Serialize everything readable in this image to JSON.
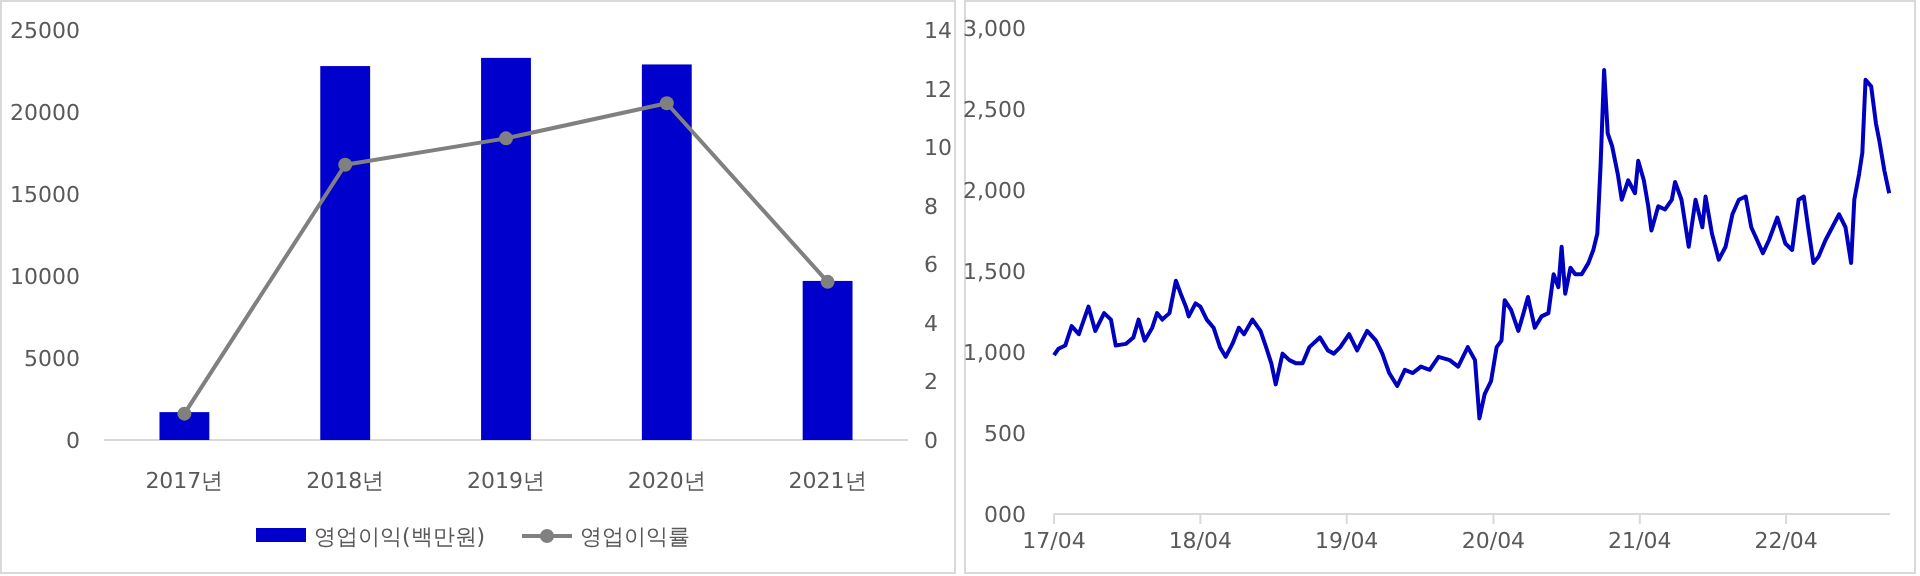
{
  "chart_data": [
    {
      "type": "bar",
      "categories": [
        "2017년",
        "2018년",
        "2019년",
        "2020년",
        "2021년"
      ],
      "series": [
        {
          "name": "영업이익(백만원)",
          "type": "bar",
          "color": "#0000cc",
          "values": [
            1700,
            22800,
            23300,
            22900,
            9700
          ]
        },
        {
          "name": "영업이익률",
          "type": "line",
          "axis": "y2",
          "color": "#808080",
          "values": [
            0.9,
            9.4,
            10.3,
            11.5,
            5.4
          ]
        }
      ],
      "ylim": [
        0,
        25000
      ],
      "yticks": [
        0,
        5000,
        10000,
        15000,
        20000,
        25000
      ],
      "y2lim": [
        0,
        14
      ],
      "y2ticks": [
        0,
        2,
        4,
        6,
        8,
        10,
        12,
        14
      ],
      "marker": "circle",
      "legend": "bottom"
    },
    {
      "type": "line",
      "series": [
        {
          "color": "#0000c0",
          "x": [
            "2017-04-01",
            "2017-04-12",
            "2017-04-29",
            "2017-05-15",
            "2017-06-02",
            "2017-06-26",
            "2017-07-13",
            "2017-08-04",
            "2017-08-21",
            "2017-09-02",
            "2017-09-27",
            "2017-10-16",
            "2017-10-29",
            "2017-11-13",
            "2017-12-02",
            "2017-12-14",
            "2017-12-27",
            "2018-01-14",
            "2018-01-30",
            "2018-02-11",
            "2018-02-24",
            "2018-03-03",
            "2018-03-20",
            "2018-04-01",
            "2018-04-17",
            "2018-05-04",
            "2018-05-20",
            "2018-06-03",
            "2018-06-20",
            "2018-07-06",
            "2018-07-19",
            "2018-08-09",
            "2018-08-29",
            "2018-09-12",
            "2018-09-25",
            "2018-10-06",
            "2018-10-23",
            "2018-11-09",
            "2018-11-26",
            "2018-12-12",
            "2018-12-29",
            "2019-01-24",
            "2019-02-13",
            "2019-02-28",
            "2019-03-16",
            "2019-04-07",
            "2019-04-27",
            "2019-05-22",
            "2019-06-13",
            "2019-06-29",
            "2019-07-16",
            "2019-08-05",
            "2019-08-24",
            "2019-09-13",
            "2019-10-03",
            "2019-10-25",
            "2019-11-16",
            "2019-12-14",
            "2020-01-04",
            "2020-01-28",
            "2020-02-15",
            "2020-02-26",
            "2020-03-10",
            "2020-03-26",
            "2020-04-09",
            "2020-04-21",
            "2020-04-29",
            "2020-05-15",
            "2020-06-02",
            "2020-06-15",
            "2020-06-26",
            "2020-07-13",
            "2020-07-30",
            "2020-08-16",
            "2020-08-29",
            "2020-09-10",
            "2020-09-18",
            "2020-09-27",
            "2020-10-10",
            "2020-10-22",
            "2020-11-07",
            "2020-11-24",
            "2020-12-06",
            "2020-12-16",
            "2020-12-24",
            "2021-01-02",
            "2021-01-11",
            "2021-01-22",
            "2021-02-05",
            "2021-02-15",
            "2021-03-03",
            "2021-03-20",
            "2021-03-28",
            "2021-04-11",
            "2021-04-22",
            "2021-04-30",
            "2021-05-17",
            "2021-06-03",
            "2021-06-20",
            "2021-06-28",
            "2021-07-14",
            "2021-08-01",
            "2021-08-18",
            "2021-09-04",
            "2021-09-12",
            "2021-09-28",
            "2021-10-15",
            "2021-11-01",
            "2021-11-18",
            "2021-12-04",
            "2021-12-21",
            "2022-01-04",
            "2022-01-15",
            "2022-02-02",
            "2022-02-17",
            "2022-03-10",
            "2022-03-30",
            "2022-04-16",
            "2022-05-02",
            "2022-05-15",
            "2022-05-27",
            "2022-06-08",
            "2022-06-21",
            "2022-07-08",
            "2022-07-25",
            "2022-08-11",
            "2022-08-27",
            "2022-09-10",
            "2022-09-18",
            "2022-09-30",
            "2022-10-08",
            "2022-10-16",
            "2022-10-30",
            "2022-11-11",
            "2022-11-19",
            "2022-12-02",
            "2022-12-14"
          ],
          "values": [
            980,
            1020,
            1040,
            1160,
            1110,
            1280,
            1130,
            1240,
            1200,
            1040,
            1050,
            1090,
            1200,
            1070,
            1150,
            1240,
            1200,
            1240,
            1440,
            1360,
            1280,
            1220,
            1300,
            1280,
            1200,
            1150,
            1030,
            970,
            1050,
            1150,
            1110,
            1200,
            1130,
            1030,
            930,
            800,
            990,
            950,
            930,
            930,
            1030,
            1090,
            1010,
            990,
            1030,
            1110,
            1010,
            1130,
            1070,
            990,
            870,
            790,
            890,
            870,
            910,
            890,
            970,
            950,
            910,
            1030,
            950,
            590,
            740,
            820,
            1030,
            1070,
            1320,
            1260,
            1130,
            1240,
            1340,
            1150,
            1220,
            1240,
            1480,
            1400,
            1650,
            1360,
            1520,
            1480,
            1480,
            1550,
            1630,
            1730,
            2140,
            2740,
            2350,
            2270,
            2100,
            1940,
            2060,
            1980,
            2180,
            2060,
            1900,
            1750,
            1900,
            1880,
            1940,
            2050,
            1940,
            1650,
            1940,
            1770,
            1960,
            1730,
            1570,
            1650,
            1850,
            1940,
            1960,
            1770,
            1710,
            1610,
            1690,
            1830,
            1670,
            1630,
            1940,
            1960,
            1750,
            1550,
            1590,
            1690,
            1770,
            1850,
            1770,
            1550,
            1940,
            2100,
            2230,
            2680,
            2640,
            2410,
            2310,
            2120,
            1980
          ]
        }
      ],
      "xlim": [
        "2017-04-01",
        "2022-12-16"
      ],
      "xticks": [
        {
          "value": "2017-04-01",
          "label": "17/04"
        },
        {
          "value": "2018-04-01",
          "label": "18/04"
        },
        {
          "value": "2019-04-01",
          "label": "19/04"
        },
        {
          "value": "2020-04-01",
          "label": "20/04"
        },
        {
          "value": "2021-04-01",
          "label": "21/04"
        },
        {
          "value": "2022-04-01",
          "label": "22/04"
        }
      ],
      "ylim": [
        0,
        3000
      ],
      "yticks": [
        {
          "value": 0,
          "label": "000"
        },
        500,
        {
          "value": 1000,
          "label": "1,000"
        },
        {
          "value": 1500,
          "label": "1,500"
        },
        {
          "value": 2000,
          "label": "2,000"
        },
        {
          "value": 2500,
          "label": "2,500"
        },
        {
          "value": 3000,
          "label": "3,000"
        }
      ]
    }
  ]
}
